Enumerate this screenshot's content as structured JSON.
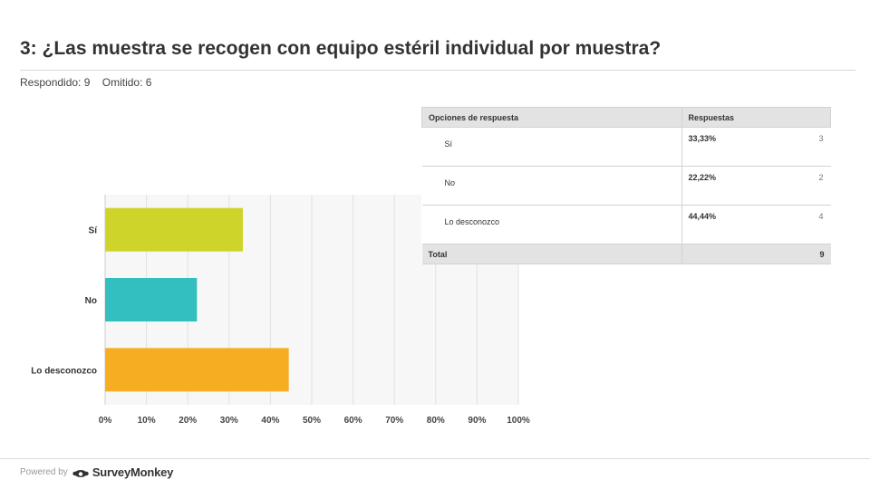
{
  "header": {
    "title": "3: ¿Las muestra se recogen con equipo estéril individual por muestra?",
    "answered": "Respondido: 9",
    "skipped": "Omitido: 6"
  },
  "chart_data": {
    "type": "bar",
    "orientation": "horizontal",
    "categories": [
      "Sí",
      "No",
      "Lo desconozco"
    ],
    "values": [
      33.33,
      22.22,
      44.44
    ],
    "colors": [
      "#cfd42a",
      "#33bfbf",
      "#f6ad22"
    ],
    "xlim": [
      0,
      100
    ],
    "x_ticks": [
      "0%",
      "10%",
      "20%",
      "30%",
      "40%",
      "50%",
      "60%",
      "70%",
      "80%",
      "90%",
      "100%"
    ],
    "grid": true
  },
  "table": {
    "col_option": "Opciones de respuesta",
    "col_responses": "Respuestas",
    "rows": [
      {
        "option": "Sí",
        "percent": "33,33%",
        "count": "3"
      },
      {
        "option": "No",
        "percent": "22,22%",
        "count": "2"
      },
      {
        "option": "Lo desconozco",
        "percent": "44,44%",
        "count": "4"
      }
    ],
    "total_label": "Total",
    "total_value": "9"
  },
  "footer": {
    "powered_by": "Powered by",
    "brand": "SurveyMonkey"
  }
}
